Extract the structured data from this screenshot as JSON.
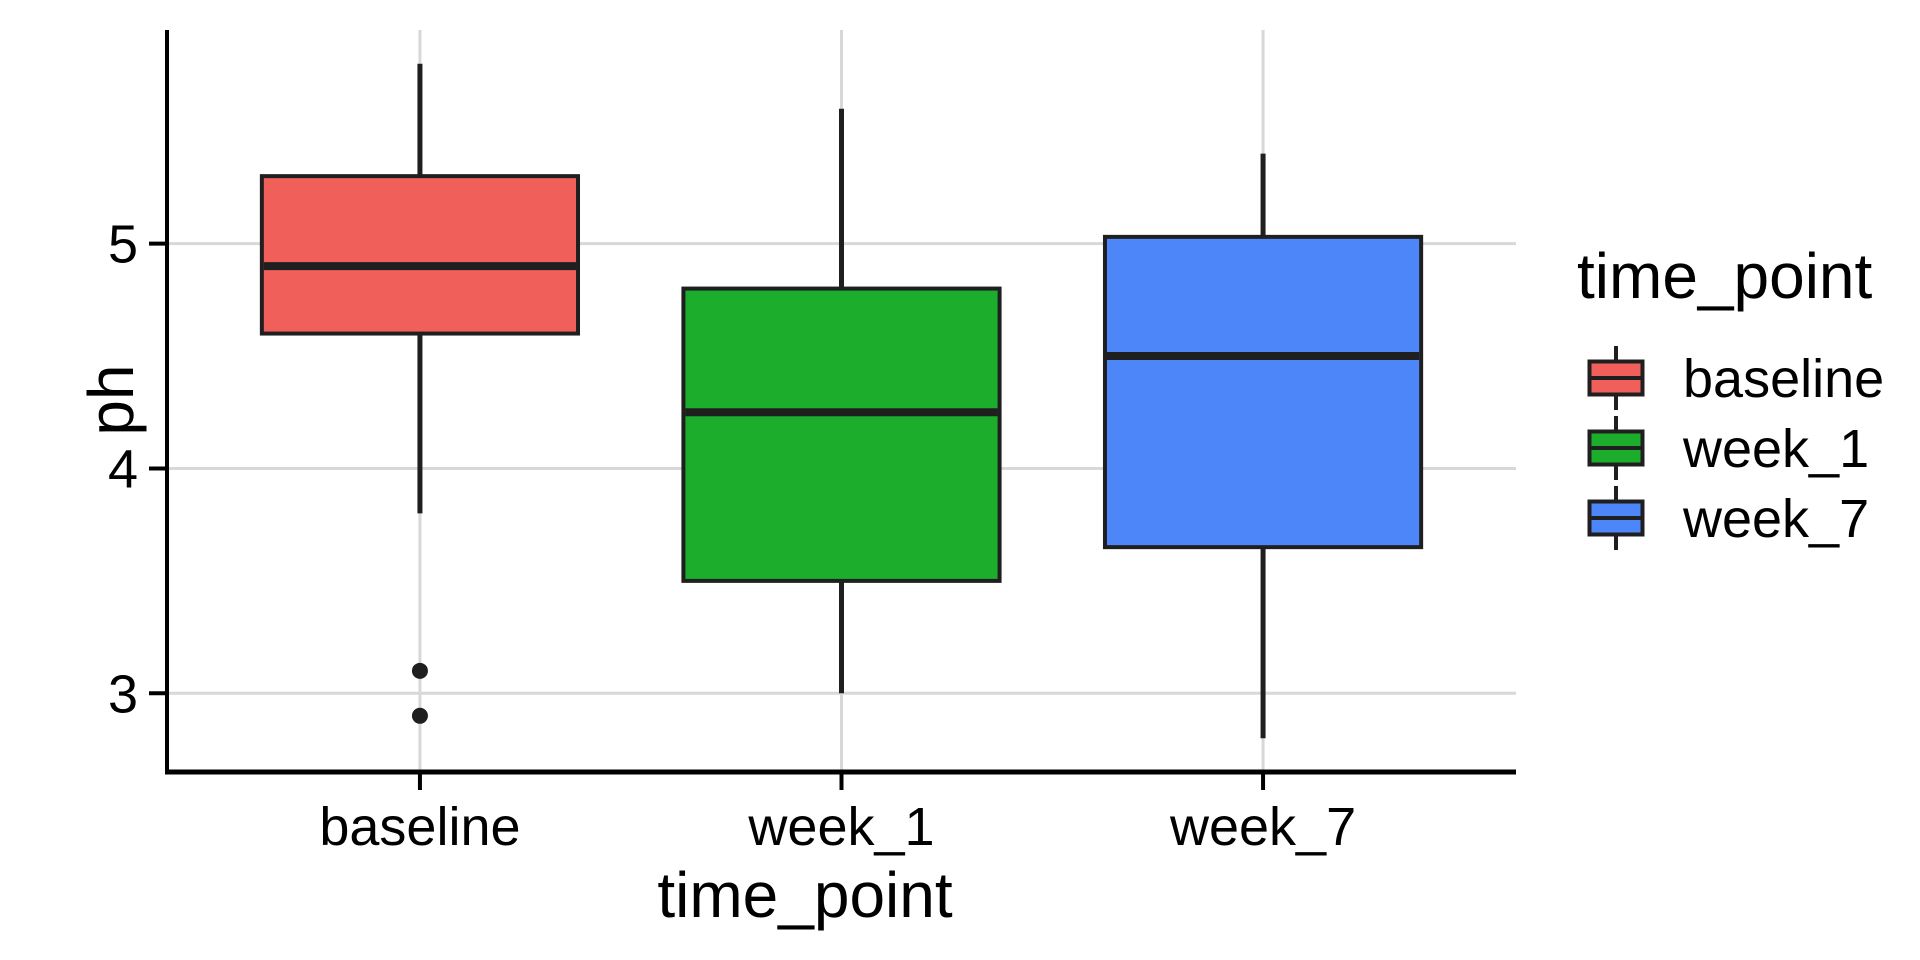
{
  "chart_data": {
    "type": "boxplot",
    "title": "",
    "xlabel": "time_point",
    "ylabel": "ph",
    "categories": [
      "baseline",
      "week_1",
      "week_7"
    ],
    "yticks": [
      3,
      4,
      5
    ],
    "ylim": [
      2.65,
      5.95
    ],
    "grid": true,
    "legend": {
      "title": "time_point",
      "position": "right",
      "entries": [
        {
          "label": "baseline",
          "color": "#F15F5B"
        },
        {
          "label": "week_1",
          "color": "#1CAD2C"
        },
        {
          "label": "week_7",
          "color": "#4D86F8"
        }
      ]
    },
    "series": [
      {
        "name": "baseline",
        "color": "#F15F5B",
        "whisker_low": 3.8,
        "q1": 4.6,
        "median": 4.9,
        "q3": 5.3,
        "whisker_high": 5.8,
        "outliers": [
          3.1,
          2.9
        ]
      },
      {
        "name": "week_1",
        "color": "#1CAD2C",
        "whisker_low": 3.0,
        "q1": 3.5,
        "median": 4.25,
        "q3": 4.8,
        "whisker_high": 5.6,
        "outliers": []
      },
      {
        "name": "week_7",
        "color": "#4D86F8",
        "whisker_low": 2.8,
        "q1": 3.65,
        "median": 4.5,
        "q3": 5.03,
        "whisker_high": 5.4,
        "outliers": []
      }
    ],
    "colors": {
      "grid": "#D8D8D8",
      "axis": "#000000",
      "box_border": "#1F1F1F",
      "text": "#000000",
      "background": "#FFFFFF"
    }
  }
}
